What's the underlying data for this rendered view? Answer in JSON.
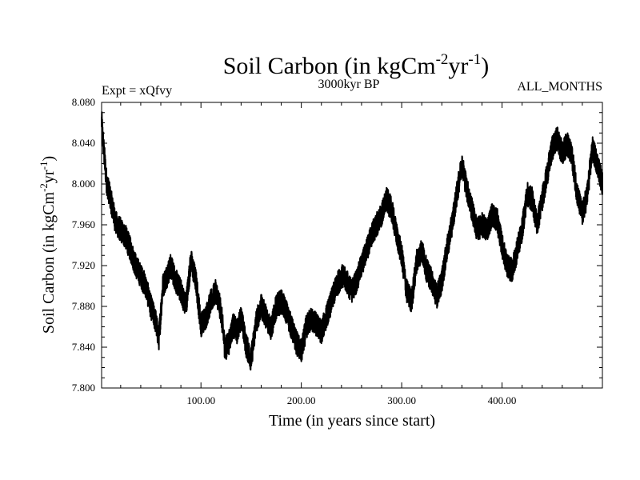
{
  "chart_data": {
    "type": "line",
    "title": {
      "prefix": "Soil Carbon (in kgCm",
      "sup1": "-2",
      "mid": "yr",
      "sup2": "-1",
      "suffix": ")"
    },
    "subtitle_left": "Expt = xQfvy",
    "subtitle_center": "3000kyr BP",
    "subtitle_right": "ALL_MONTHS",
    "xlabel": "Time (in years since start)",
    "ylabel": {
      "prefix": "Soil Carbon (in kgCm",
      "sup1": "-2",
      "mid": "yr",
      "sup2": "-1",
      "suffix": ")"
    },
    "xlim": [
      1,
      500
    ],
    "ylim": [
      7.8,
      8.08
    ],
    "xticks": [
      100,
      200,
      300,
      400
    ],
    "xtick_labels": [
      "100.00",
      "200.00",
      "300.00",
      "400.00"
    ],
    "yticks": [
      7.8,
      7.84,
      7.88,
      7.92,
      7.96,
      8.0,
      8.04,
      8.08
    ],
    "ytick_labels": [
      "7.800",
      "7.840",
      "7.880",
      "7.920",
      "7.960",
      "8.000",
      "8.040",
      "8.080"
    ],
    "line_color": "#000000",
    "series": [
      {
        "name": "Soil Carbon",
        "x": [
          1,
          3,
          6,
          10,
          15,
          20,
          25,
          30,
          35,
          40,
          45,
          50,
          55,
          58,
          62,
          66,
          70,
          75,
          80,
          85,
          90,
          95,
          100,
          105,
          110,
          115,
          120,
          124,
          128,
          132,
          136,
          140,
          145,
          150,
          155,
          160,
          165,
          170,
          175,
          180,
          185,
          190,
          195,
          200,
          205,
          210,
          215,
          220,
          225,
          230,
          235,
          240,
          245,
          250,
          255,
          260,
          265,
          270,
          275,
          280,
          285,
          290,
          295,
          300,
          305,
          310,
          315,
          320,
          325,
          330,
          335,
          340,
          345,
          350,
          355,
          360,
          365,
          370,
          375,
          380,
          385,
          390,
          395,
          400,
          405,
          410,
          415,
          420,
          425,
          430,
          435,
          440,
          445,
          450,
          455,
          460,
          465,
          470,
          475,
          480,
          485,
          490,
          495,
          500
        ],
        "y": [
          8.062,
          8.035,
          8.002,
          7.985,
          7.962,
          7.955,
          7.948,
          7.935,
          7.92,
          7.91,
          7.9,
          7.88,
          7.865,
          7.848,
          7.9,
          7.91,
          7.92,
          7.905,
          7.895,
          7.88,
          7.925,
          7.905,
          7.862,
          7.87,
          7.885,
          7.895,
          7.875,
          7.838,
          7.845,
          7.862,
          7.855,
          7.87,
          7.842,
          7.828,
          7.865,
          7.88,
          7.87,
          7.858,
          7.88,
          7.885,
          7.875,
          7.86,
          7.845,
          7.835,
          7.86,
          7.868,
          7.862,
          7.855,
          7.87,
          7.885,
          7.9,
          7.91,
          7.905,
          7.895,
          7.905,
          7.92,
          7.935,
          7.95,
          7.96,
          7.97,
          7.985,
          7.975,
          7.95,
          7.93,
          7.895,
          7.885,
          7.925,
          7.935,
          7.915,
          7.905,
          7.89,
          7.905,
          7.935,
          7.96,
          7.99,
          8.02,
          7.995,
          7.975,
          7.955,
          7.96,
          7.955,
          7.97,
          7.965,
          7.94,
          7.92,
          7.915,
          7.935,
          7.955,
          7.99,
          7.985,
          7.96,
          7.985,
          8.01,
          8.035,
          8.045,
          8.03,
          8.04,
          8.025,
          7.99,
          7.97,
          7.99,
          8.035,
          8.02,
          8.0
        ]
      }
    ]
  }
}
